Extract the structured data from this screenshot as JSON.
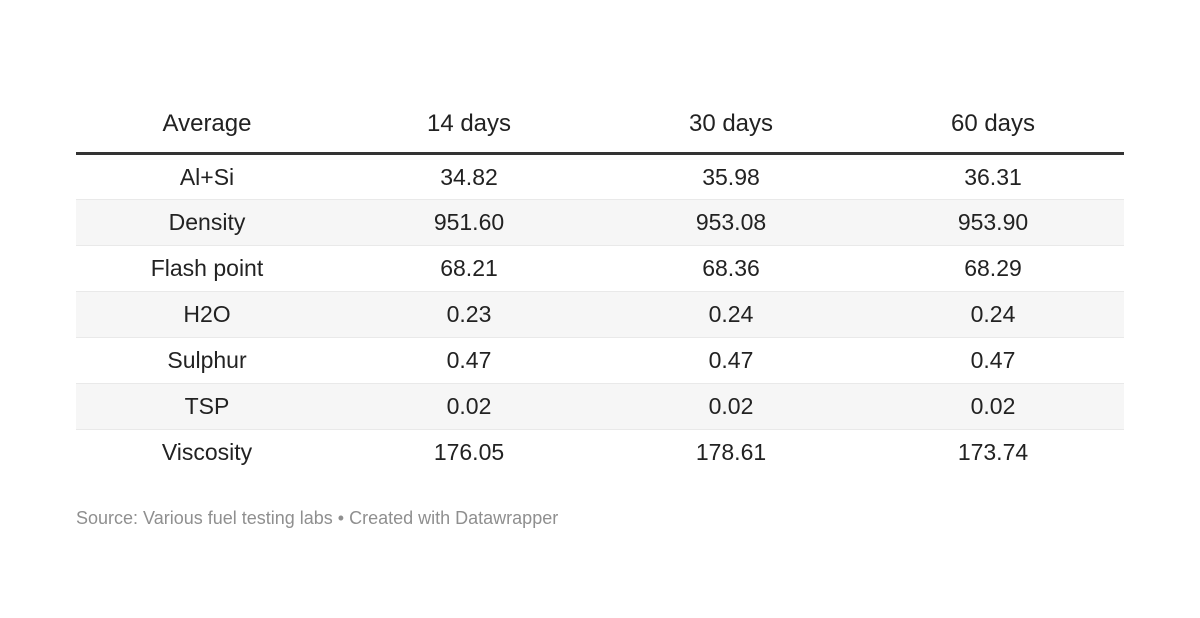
{
  "chart_data": {
    "type": "table",
    "columns": [
      "Average",
      "14 days",
      "30 days",
      "60 days"
    ],
    "rows": [
      {
        "label": "Al+Si",
        "values": [
          "34.82",
          "35.98",
          "36.31"
        ]
      },
      {
        "label": "Density",
        "values": [
          "951.60",
          "953.08",
          "953.90"
        ]
      },
      {
        "label": "Flash point",
        "values": [
          "68.21",
          "68.36",
          "68.29"
        ]
      },
      {
        "label": "H2O",
        "values": [
          "0.23",
          "0.24",
          "0.24"
        ]
      },
      {
        "label": "Sulphur",
        "values": [
          "0.47",
          "0.47",
          "0.47"
        ]
      },
      {
        "label": "TSP",
        "values": [
          "0.02",
          "0.02",
          "0.02"
        ]
      },
      {
        "label": "Viscosity",
        "values": [
          "176.05",
          "178.61",
          "173.74"
        ]
      }
    ],
    "layout_hints": {
      "striped_rows": true,
      "header_rule": true,
      "cell_alignment": "center",
      "grid": "horizontal-only"
    }
  },
  "footer": {
    "text": "Source: Various fuel testing labs • Created with Datawrapper"
  },
  "theme": {
    "text_color": "#222222",
    "header_rule_color": "#333333",
    "row_divider_color": "#e9e9e9",
    "stripe_color": "#f6f6f6",
    "footer_text_color": "#8f8f8f",
    "background": "#ffffff"
  }
}
